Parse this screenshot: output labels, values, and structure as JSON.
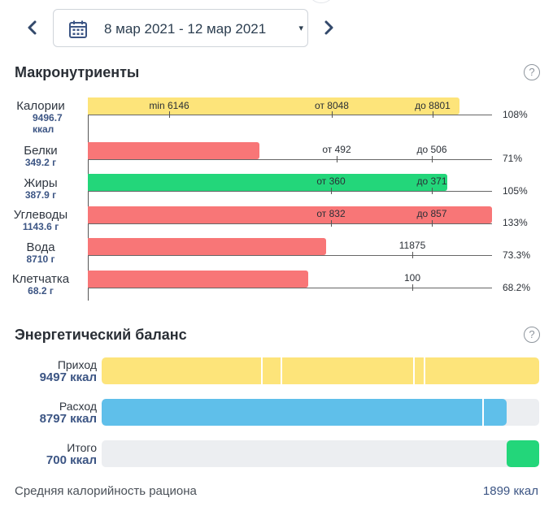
{
  "header": {
    "date_range": "8 мар 2021 - 12 мар 2021",
    "prev_label": "‹",
    "next_label": "›",
    "caret": "▾"
  },
  "macros": {
    "title": "Макронутриенты",
    "help": "?",
    "rows": [
      {
        "name": "Калории",
        "value": "9496.7",
        "unit": "ккал",
        "color": "#fde47a",
        "fill_percent": 92,
        "percent_text": "108%",
        "markers": [
          {
            "label": "min 6146"
          },
          {
            "label": "от 8048"
          },
          {
            "label": "до 8801"
          }
        ]
      },
      {
        "name": "Белки",
        "value": "349.2 г",
        "color": "#f87677",
        "fill_percent": 42.5,
        "percent_text": "71%",
        "markers": [
          {
            "label": "от 492"
          },
          {
            "label": "до 506"
          }
        ]
      },
      {
        "name": "Жиры",
        "value": "387.9 г",
        "color": "#23d67a",
        "fill_percent": 89,
        "percent_text": "105%",
        "markers": [
          {
            "label": "от 360"
          },
          {
            "label": "до 371"
          }
        ]
      },
      {
        "name": "Углеводы",
        "value": "1143.6 г",
        "color": "#f87677",
        "fill_percent": 100,
        "percent_text": "133%",
        "markers": [
          {
            "label": "от 832"
          },
          {
            "label": "до 857"
          }
        ]
      },
      {
        "name": "Вода",
        "value": "8710 г",
        "color": "#f87677",
        "fill_percent": 59,
        "percent_text": "73.3%",
        "markers": [
          {
            "label": "11875"
          }
        ]
      },
      {
        "name": "Клетчатка",
        "value": "68.2 г",
        "color": "#f87677",
        "fill_percent": 54.5,
        "percent_text": "68.2%",
        "markers": [
          {
            "label": "100"
          }
        ]
      }
    ]
  },
  "energy": {
    "title": "Энергетический баланс",
    "help": "?",
    "income": {
      "label": "Приход",
      "value": "9497 ккал",
      "color": "#fde47a",
      "fill_percent": 100
    },
    "expense": {
      "label": "Расход",
      "value": "8797 ккал",
      "color": "#5fbfea",
      "fill_percent": 92.6
    },
    "total": {
      "label": "Итого",
      "value": "700 ккал",
      "color": "#23d67a",
      "fill_percent": 7.4
    }
  },
  "footer": {
    "avg_label": "Средняя калорийность рациона",
    "avg_value": "1899 ккал"
  },
  "colors": {
    "accent": "#3c5584",
    "yellow": "#fde47a",
    "red": "#f87677",
    "green": "#23d67a",
    "blue": "#5fbfea"
  },
  "icons": [
    "chevron-left-icon",
    "calendar-icon",
    "caret-down-icon",
    "chevron-right-icon",
    "help-icon"
  ]
}
